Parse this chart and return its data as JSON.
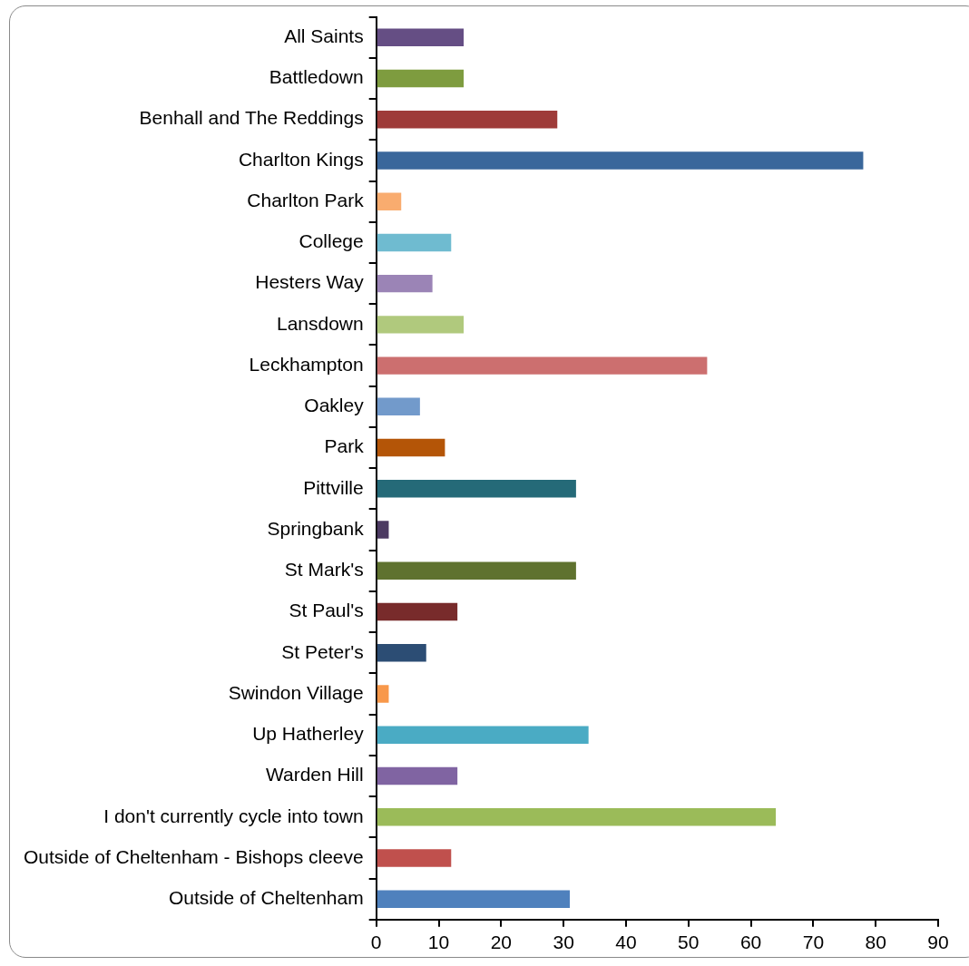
{
  "chart_data": {
    "type": "bar",
    "orientation": "horizontal",
    "categories": [
      "All Saints",
      "Battledown",
      "Benhall and The Reddings",
      "Charlton Kings",
      "Charlton Park",
      "College",
      "Hesters Way",
      "Lansdown",
      "Leckhampton",
      "Oakley",
      "Park",
      "Pittville",
      "Springbank",
      "St Mark's",
      "St Paul's",
      "St Peter's",
      "Swindon Village",
      "Up Hatherley",
      "Warden Hill",
      "I don't currently cycle into town",
      "Outside of Cheltenham - Bishops cleeve",
      "Outside of Cheltenham"
    ],
    "values": [
      14,
      14,
      29,
      78,
      4,
      12,
      9,
      14,
      53,
      7,
      11,
      32,
      2,
      32,
      13,
      8,
      2,
      34,
      13,
      64,
      12,
      31
    ],
    "colors": [
      "#654e84",
      "#7e9c3f",
      "#9e3b39",
      "#3a679b",
      "#f9ac6f",
      "#6fbbd0",
      "#9b84b6",
      "#b0c97d",
      "#cc6f6f",
      "#729acb",
      "#b45507",
      "#256a78",
      "#4c3a62",
      "#5f722f",
      "#782b2b",
      "#2c4d74",
      "#f8984a",
      "#4aabc4",
      "#8064a2",
      "#9bbb59",
      "#c0504d",
      "#4f81bd"
    ],
    "xlim": [
      0,
      90
    ],
    "xticks": [
      0,
      10,
      20,
      30,
      40,
      50,
      60,
      70,
      80,
      90
    ],
    "grid": false,
    "legend": false
  }
}
